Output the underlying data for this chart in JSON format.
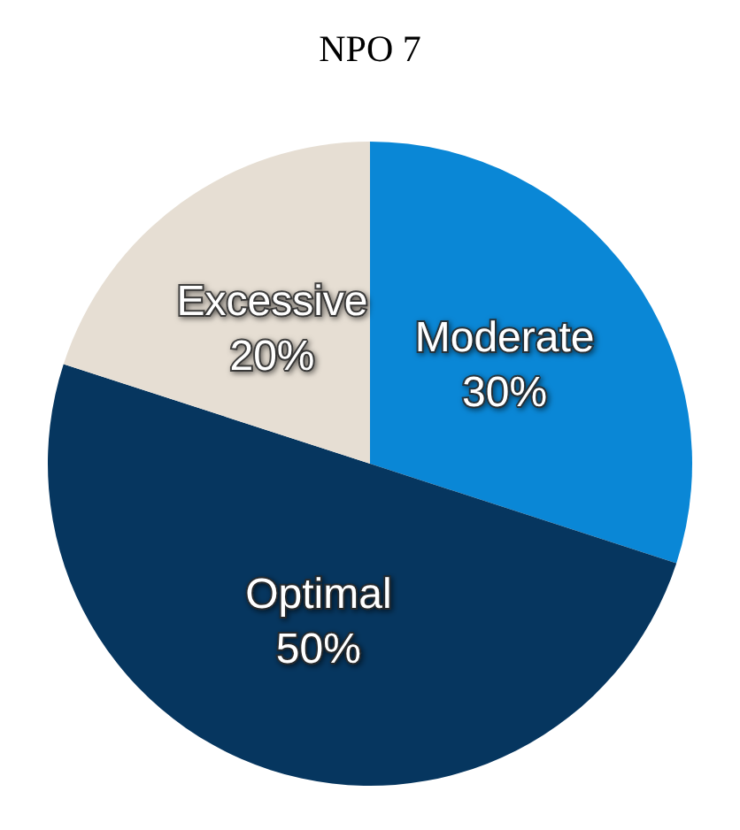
{
  "chart_data": {
    "type": "pie",
    "title": "NPO 7",
    "categories": [
      "Moderate",
      "Optimal",
      "Excessive"
    ],
    "values": [
      30,
      50,
      20
    ],
    "value_labels": [
      "30%",
      "50%",
      "20%"
    ],
    "colors": [
      "#0a87d6",
      "#06365f",
      "#e6ded3"
    ],
    "legend": false
  }
}
